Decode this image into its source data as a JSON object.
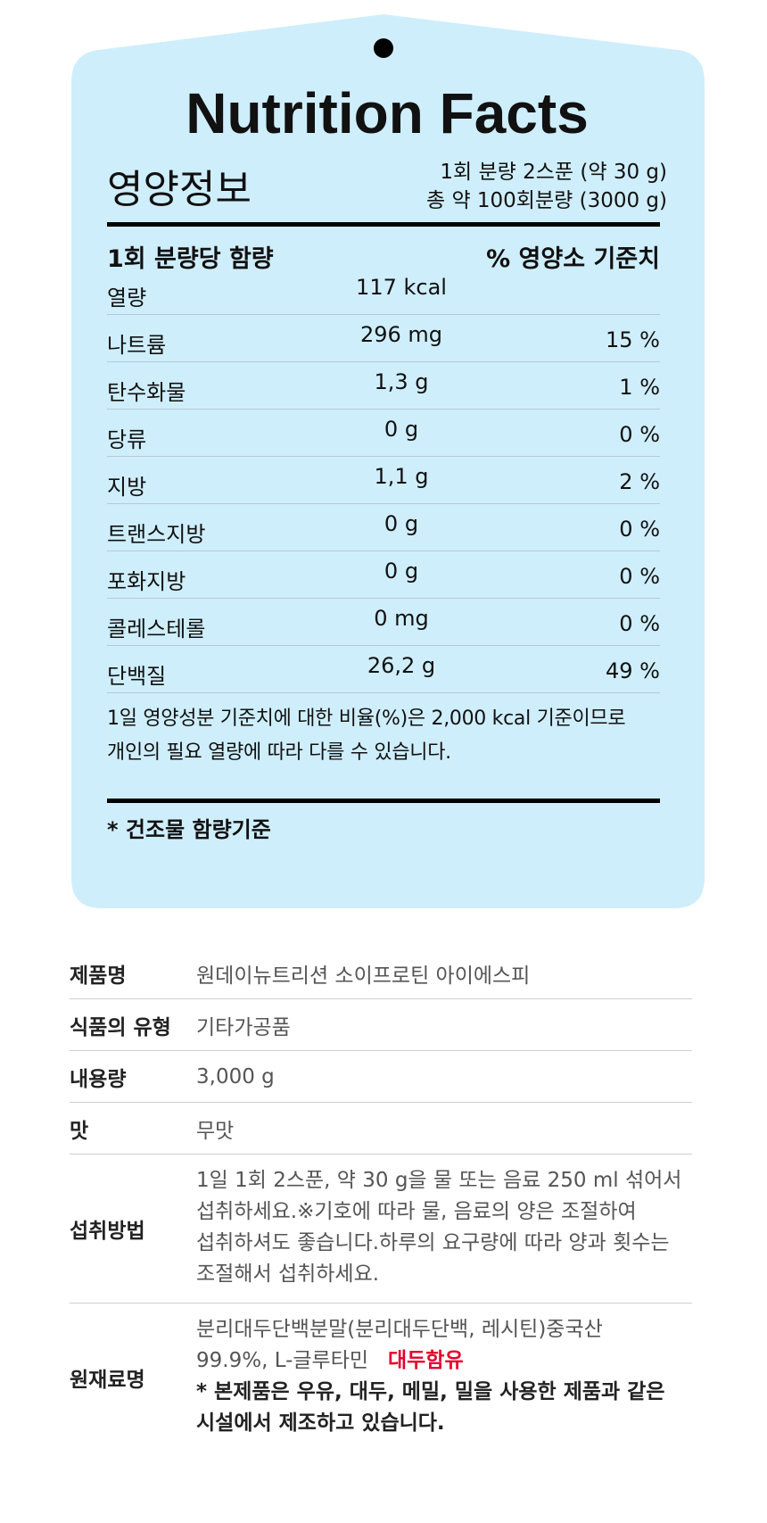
{
  "panel": {
    "title": "Nutrition Facts",
    "kr_title": "영양정보",
    "serving_line1": "1회 분량 2스푼 (약 30 g)",
    "serving_line2": "총 약 100회분량 (3000 g)",
    "col_left": "1회 분량당 함량",
    "col_right": "% 영양소 기준치",
    "rows": [
      {
        "name": "열량",
        "amount": "117 kcal",
        "dv": ""
      },
      {
        "name": "나트륨",
        "amount": "296 mg",
        "dv": "15 %"
      },
      {
        "name": "탄수화물",
        "amount": "1,3 g",
        "dv": "1 %"
      },
      {
        "name": "당류",
        "amount": "0 g",
        "dv": "0 %"
      },
      {
        "name": "지방",
        "amount": "1,1 g",
        "dv": "2 %"
      },
      {
        "name": "트랜스지방",
        "amount": "0 g",
        "dv": "0 %"
      },
      {
        "name": "포화지방",
        "amount": "0 g",
        "dv": "0 %"
      },
      {
        "name": "콜레스테롤",
        "amount": "0 mg",
        "dv": "0 %"
      },
      {
        "name": "단백질",
        "amount": "26,2 g",
        "dv": "49 %"
      }
    ],
    "note_line1": "1일 영양성분 기준치에 대한 비율(%)은 2,000 kcal 기준이므로",
    "note_line2": "개인의 필요 열량에 따라 다를 수 있습니다.",
    "basis": "* 건조물 함량기준",
    "bg_color": "#cfeefc"
  },
  "info": {
    "product_label": "제품명",
    "product_value": "원데이뉴트리션 소이프로틴 아이에스피",
    "type_label": "식품의 유형",
    "type_value": "기타가공품",
    "volume_label": "내용량",
    "volume_value": "3,000 g",
    "taste_label": "맛",
    "taste_value": "무맛",
    "method_label": "섭취방법",
    "method_lines": [
      "1일 1회 2스푼, 약 30 g을 물 또는 음료 250 ml 섞어서",
      "섭취하세요.※기호에 따라 물, 음료의 양은 조절하여",
      "섭취하셔도 좋습니다.하루의 요구량에 따라 양과 횟수는",
      "조절해서 섭취하세요."
    ],
    "ingredients_label": "원재료명",
    "ingredients_line1": "분리대두단백분말(분리대두단백, 레시틴)중국산",
    "ingredients_line2": "99.9%, L-글루타민",
    "allergen": "대두함유",
    "allergen_color": "#e4002b",
    "notice_line1": "* 본제품은 우유, 대두, 메밀, 밀을 사용한 제품과 같은",
    "notice_line2": "시설에서 제조하고 있습니다."
  }
}
